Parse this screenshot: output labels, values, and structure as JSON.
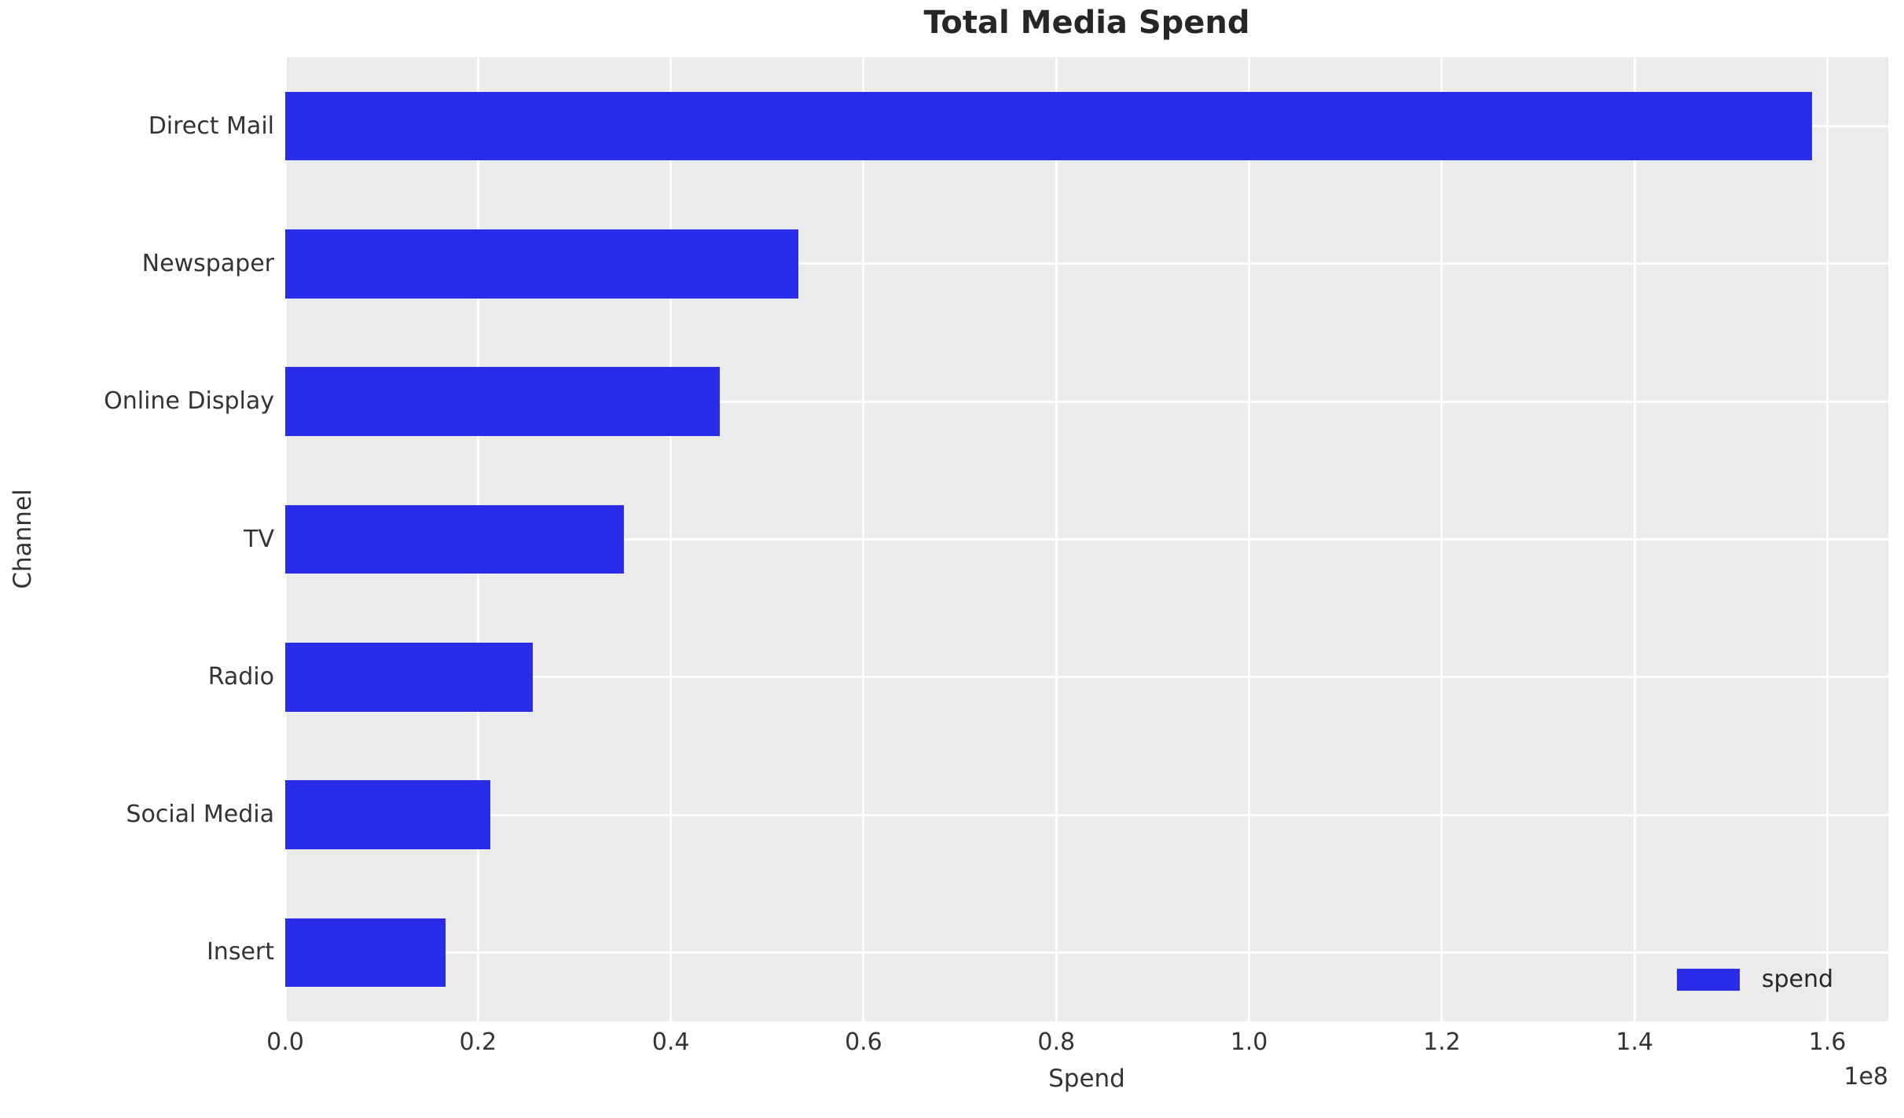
{
  "chart_data": {
    "type": "bar",
    "orientation": "horizontal",
    "title": "Total Media Spend",
    "xlabel": "Spend",
    "ylabel": "Channel",
    "categories": [
      "Direct Mail",
      "Newspaper",
      "Online Display",
      "TV",
      "Radio",
      "Social Media",
      "Insert"
    ],
    "series": [
      {
        "name": "spend",
        "values": [
          158400000,
          53200000,
          45100000,
          35100000,
          25700000,
          21300000,
          16600000
        ]
      }
    ],
    "xlim": [
      0,
      166320000
    ],
    "x_ticks": [
      0,
      20000000,
      40000000,
      60000000,
      80000000,
      100000000,
      120000000,
      140000000,
      160000000
    ],
    "x_tick_labels": [
      "0.0",
      "0.2",
      "0.4",
      "0.6",
      "0.8",
      "1.0",
      "1.2",
      "1.4",
      "1.6"
    ],
    "x_offset_text": "1e8",
    "grid": true,
    "legend": {
      "position": "lower right",
      "entries": [
        {
          "label": "spend",
          "color": "#2a2de8"
        }
      ]
    },
    "colors": {
      "bar": "#2a2de8",
      "plot_background": "#ebebeb",
      "gridline": "#ffffff",
      "title_text": "#262626",
      "tick_text": "#333333"
    },
    "bar_height_fraction": 0.5
  }
}
